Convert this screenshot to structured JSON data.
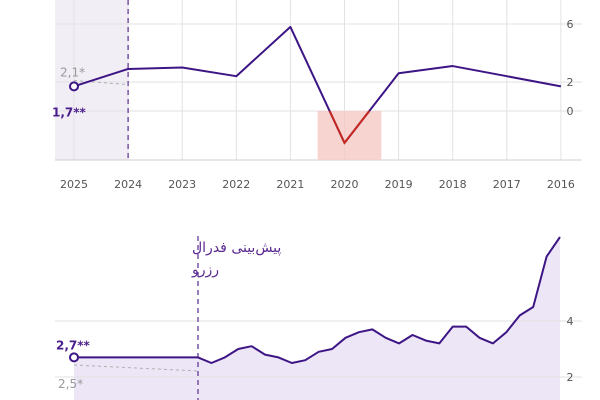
{
  "colors": {
    "line": "#3d1585",
    "forecast_band": "#f1eef6",
    "area_fill": "#e6ddf3",
    "negative_fill": "#f5c9c4",
    "negative_line": "#c8281e",
    "grid": "#e2e2e2",
    "axis": "#cfcfcf"
  },
  "chart_data": [
    {
      "type": "line",
      "title": "",
      "x": [
        "2025",
        "2024",
        "2023",
        "2022",
        "2021",
        "2020",
        "2019",
        "2018",
        "2017",
        "2016"
      ],
      "x_direction": "right-to-left",
      "series": [
        {
          "values": [
            1.7,
            2.9,
            3.0,
            2.4,
            5.8,
            -2.2,
            2.6,
            3.1,
            2.4,
            1.7
          ]
        }
      ],
      "yticks": [
        "6",
        "2",
        "0"
      ],
      "ylim": [
        -3,
        6
      ],
      "annotations": [
        {
          "text": "2,1*",
          "value": 2.1,
          "x": "2025",
          "style": "grey"
        },
        {
          "text": "1,7**",
          "value": 1.7,
          "x": "2025",
          "style": "purple"
        }
      ],
      "forecast_region": [
        "2025",
        "2024"
      ],
      "negative_highlight": "2020",
      "grid": true
    },
    {
      "type": "area",
      "title": "",
      "caption_lines": [
        "پیش‌بینی فدرال",
        "رزرو"
      ],
      "x_direction": "right-to-left",
      "series": [
        {
          "values": [
            7.0,
            6.3,
            4.5,
            4.2,
            3.6,
            3.2,
            3.4,
            3.8,
            3.8,
            3.2,
            3.3,
            3.5,
            3.2,
            3.4,
            3.7,
            3.6,
            3.4,
            3.0,
            2.9,
            2.6,
            2.5,
            2.7,
            2.8,
            3.1,
            3.0,
            2.7,
            2.5,
            2.7
          ]
        }
      ],
      "yticks": [
        "4",
        "2"
      ],
      "ylim": [
        1,
        8
      ],
      "annotations": [
        {
          "text": "2,7**",
          "value": 2.7,
          "style": "purple"
        },
        {
          "text": "2,5*",
          "value": 2.5,
          "style": "grey"
        }
      ],
      "grid": true
    }
  ]
}
